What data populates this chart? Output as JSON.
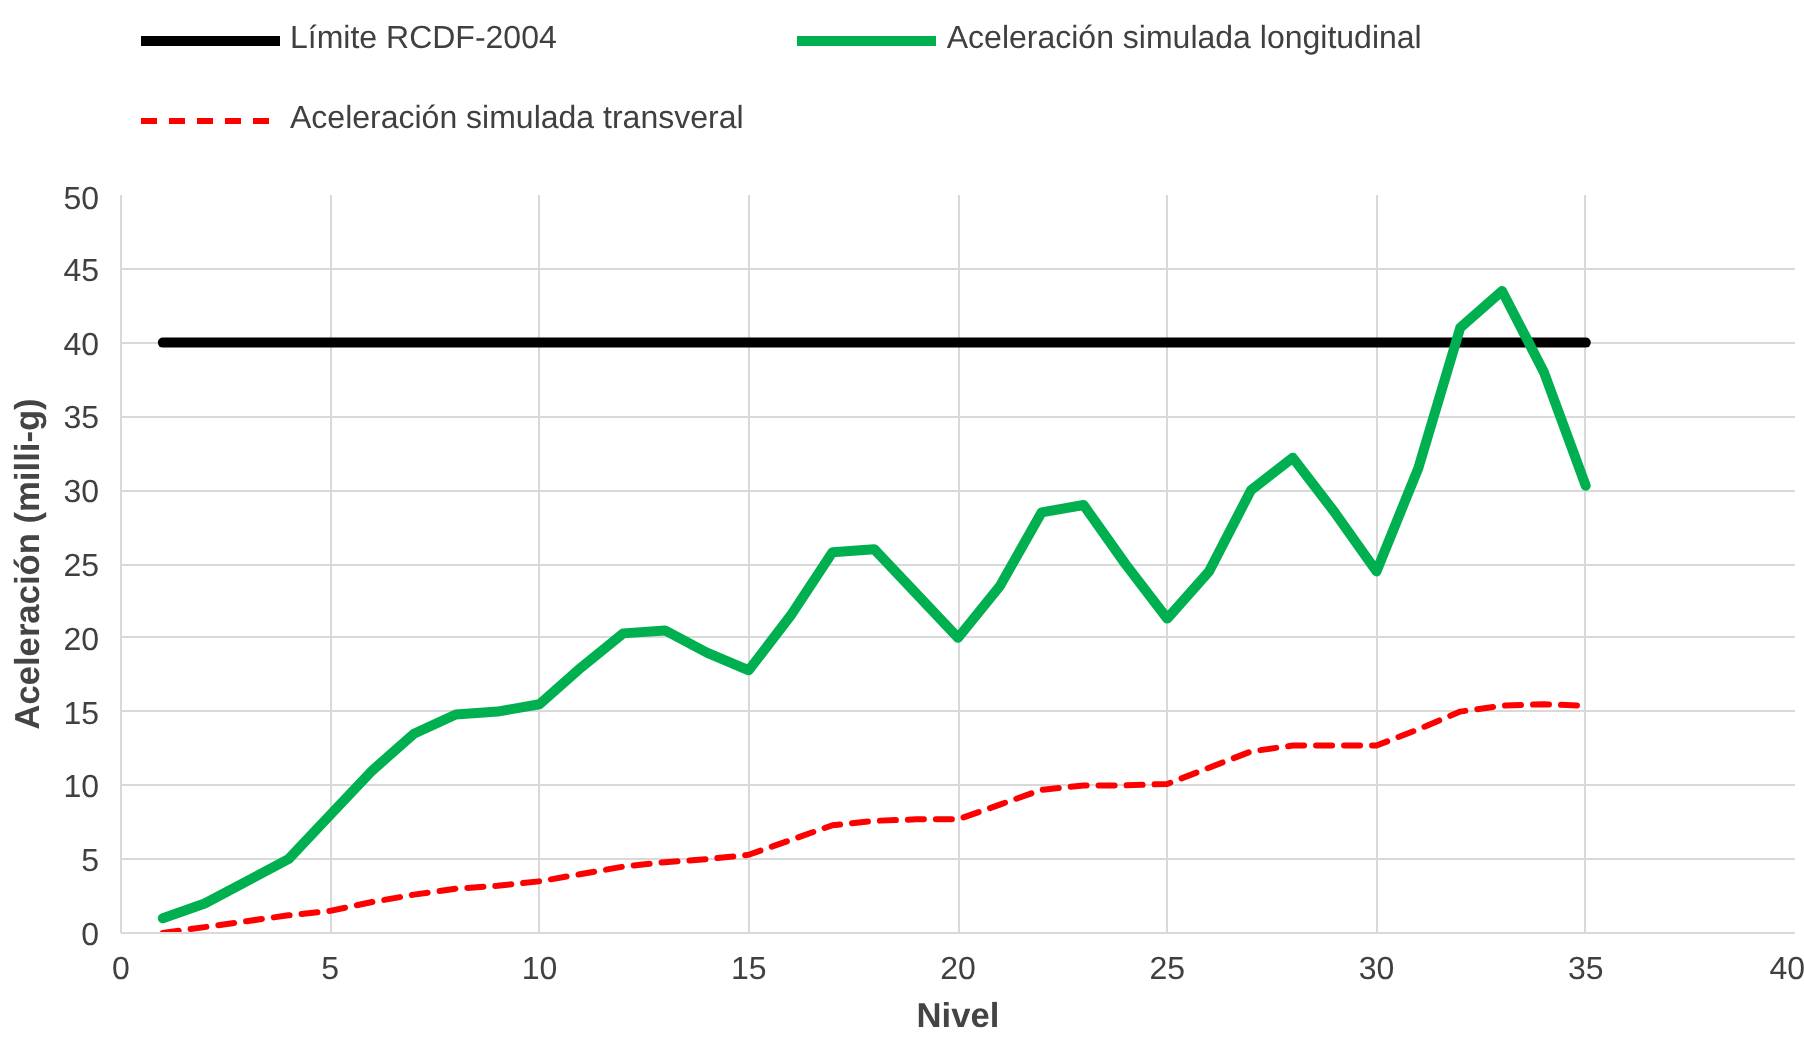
{
  "chart_data": {
    "type": "line",
    "xlabel": "Nivel",
    "ylabel": "Aceleración (milli-g)",
    "x": [
      1,
      2,
      3,
      4,
      5,
      6,
      7,
      8,
      9,
      10,
      11,
      12,
      13,
      14,
      15,
      16,
      17,
      18,
      19,
      20,
      21,
      22,
      23,
      24,
      25,
      26,
      27,
      28,
      29,
      30,
      31,
      32,
      33,
      34,
      35
    ],
    "series": [
      {
        "name": "Límite RCDF-2004",
        "color": "#000000",
        "line_style": "solid",
        "values": [
          40,
          40,
          40,
          40,
          40,
          40,
          40,
          40,
          40,
          40,
          40,
          40,
          40,
          40,
          40,
          40,
          40,
          40,
          40,
          40,
          40,
          40,
          40,
          40,
          40,
          40,
          40,
          40,
          40,
          40,
          40,
          40,
          40,
          40,
          40
        ]
      },
      {
        "name": "Aceleración simulada longitudinal",
        "color": "#00b050",
        "line_style": "solid",
        "values": [
          1,
          2,
          3.5,
          5,
          8,
          11,
          13.5,
          14.8,
          15,
          15.5,
          18,
          20.3,
          20.5,
          19,
          17.8,
          21.5,
          25.8,
          26,
          23,
          20,
          23.5,
          28.5,
          29,
          25,
          21.3,
          24.5,
          30,
          32.2,
          28.5,
          24.5,
          31.5,
          41,
          43.5,
          38,
          30.3
        ]
      },
      {
        "name": "Aceleración simulada transveral",
        "color": "#ff0000",
        "line_style": "dashed",
        "values": [
          0,
          0.4,
          0.8,
          1.2,
          1.5,
          2.1,
          2.6,
          3,
          3.2,
          3.5,
          4,
          4.5,
          4.8,
          5,
          5.3,
          6.3,
          7.3,
          7.6,
          7.7,
          7.7,
          8.7,
          9.7,
          10,
          10,
          10.1,
          11.2,
          12.3,
          12.7,
          12.7,
          12.7,
          13.8,
          15,
          15.4,
          15.5,
          15.4
        ]
      }
    ],
    "xlim": [
      0,
      40
    ],
    "xticks": [
      0,
      5,
      10,
      15,
      20,
      25,
      30,
      35,
      40
    ],
    "ylim": [
      0,
      50
    ],
    "yticks": [
      0,
      5,
      10,
      15,
      20,
      25,
      30,
      35,
      40,
      45,
      50
    ],
    "grid": true,
    "legend": "top",
    "marker": "none"
  }
}
